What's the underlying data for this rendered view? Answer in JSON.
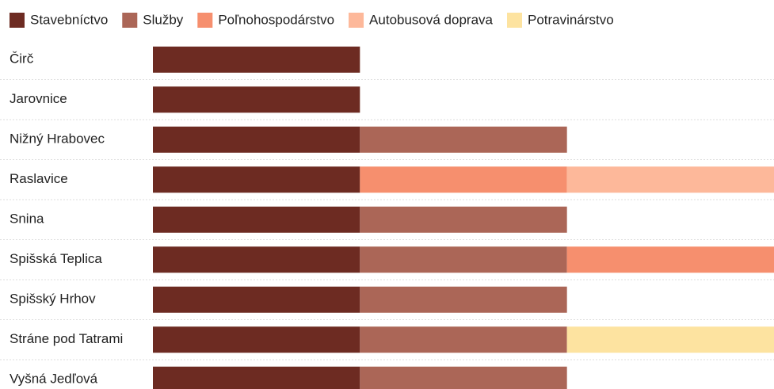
{
  "chart_data": {
    "type": "stacked-bar-horizontal",
    "categories": [
      "Čirč",
      "Jarovnice",
      "Nižný Hrabovec",
      "Raslavice",
      "Snina",
      "Spišská Teplica",
      "Spišský Hrhov",
      "Stráne pod Tatrami",
      "Vyšná Jedľová"
    ],
    "series": [
      {
        "name": "Stavebníctvo",
        "color": "#6d2b22",
        "values": [
          1,
          1,
          1,
          1,
          1,
          1,
          1,
          1,
          1
        ]
      },
      {
        "name": "Služby",
        "color": "#ab6657",
        "values": [
          0,
          0,
          1,
          0,
          1,
          1,
          1,
          1,
          1
        ]
      },
      {
        "name": "Poľnohospodárstvo",
        "color": "#f68f6e",
        "values": [
          0,
          0,
          0,
          1,
          0,
          1,
          0,
          0,
          0
        ]
      },
      {
        "name": "Autobusová doprava",
        "color": "#fdb89a",
        "values": [
          0,
          0,
          0,
          1,
          0,
          0,
          0,
          0,
          0
        ]
      },
      {
        "name": "Potravinárstvo",
        "color": "#fde3a0",
        "values": [
          0,
          0,
          0,
          0,
          0,
          0,
          0,
          1,
          0
        ]
      }
    ],
    "xlim": [
      0,
      3
    ]
  }
}
